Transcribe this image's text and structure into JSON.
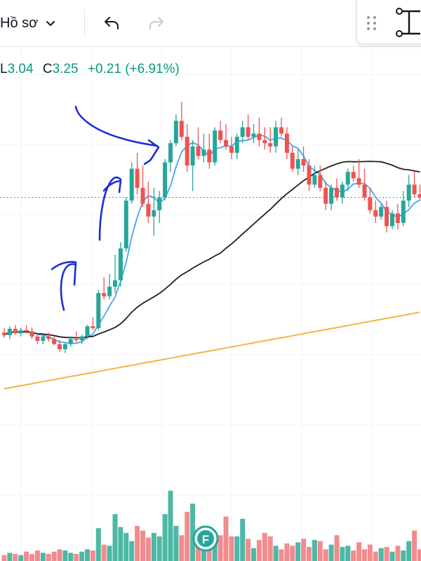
{
  "toolbar": {
    "profile_label": "Hồ sơ",
    "icons": [
      "chevron-down-icon",
      "undo-icon",
      "redo-icon",
      "drag-handle-icon",
      "measure-tool-icon"
    ]
  },
  "legend": {
    "low_label": "L",
    "low_value": "3.04",
    "close_label": "C",
    "close_value": "3.25",
    "change": "+0.21 (+6.91%)"
  },
  "colors": {
    "up": "#26a69a",
    "down": "#ef5350",
    "vol_up": "#4cb8a6",
    "vol_down": "#f28b8e",
    "ma_short": "#42a5f5",
    "ma_long": "#1f1f1f",
    "ma_longest": "#f5b342",
    "annotation": "#1b2fd6",
    "price_line": "#26a69a"
  },
  "chart_data": {
    "type": "candlestick",
    "price_unit": "relative",
    "ohlc": [
      [
        0.48,
        0.55,
        0.4,
        0.44
      ],
      [
        0.44,
        0.58,
        0.38,
        0.54
      ],
      [
        0.54,
        0.6,
        0.45,
        0.47
      ],
      [
        0.47,
        0.56,
        0.42,
        0.52
      ],
      [
        0.52,
        0.6,
        0.46,
        0.5
      ],
      [
        0.5,
        0.56,
        0.38,
        0.42
      ],
      [
        0.42,
        0.47,
        0.3,
        0.35
      ],
      [
        0.35,
        0.45,
        0.3,
        0.42
      ],
      [
        0.42,
        0.48,
        0.34,
        0.38
      ],
      [
        0.38,
        0.43,
        0.28,
        0.3
      ],
      [
        0.3,
        0.36,
        0.18,
        0.22
      ],
      [
        0.22,
        0.32,
        0.16,
        0.3
      ],
      [
        0.3,
        0.42,
        0.26,
        0.38
      ],
      [
        0.38,
        0.5,
        0.33,
        0.36
      ],
      [
        0.36,
        0.45,
        0.3,
        0.42
      ],
      [
        0.42,
        0.6,
        0.38,
        0.58
      ],
      [
        0.58,
        0.72,
        0.52,
        0.55
      ],
      [
        0.55,
        1.15,
        0.52,
        1.1
      ],
      [
        1.1,
        1.35,
        1.0,
        1.05
      ],
      [
        1.05,
        1.4,
        1.0,
        1.2
      ],
      [
        1.2,
        1.7,
        1.1,
        1.3
      ],
      [
        1.3,
        1.9,
        1.2,
        1.8
      ],
      [
        1.8,
        2.6,
        1.75,
        2.55
      ],
      [
        2.55,
        3.15,
        2.5,
        3.05
      ],
      [
        3.05,
        3.3,
        2.65,
        2.75
      ],
      [
        2.75,
        3.1,
        2.45,
        2.5
      ],
      [
        2.5,
        2.85,
        2.2,
        2.3
      ],
      [
        2.3,
        2.75,
        2.0,
        2.4
      ],
      [
        2.4,
        2.7,
        2.2,
        2.6
      ],
      [
        2.6,
        3.2,
        2.55,
        3.15
      ],
      [
        3.15,
        3.5,
        3.0,
        3.45
      ],
      [
        3.45,
        3.9,
        3.4,
        3.8
      ],
      [
        3.8,
        4.1,
        3.5,
        3.55
      ],
      [
        3.55,
        3.75,
        3.0,
        3.1
      ],
      [
        3.1,
        3.5,
        2.7,
        3.4
      ],
      [
        3.4,
        3.7,
        3.2,
        3.25
      ],
      [
        3.25,
        3.6,
        3.15,
        3.35
      ],
      [
        3.35,
        3.6,
        3.05,
        3.15
      ],
      [
        3.15,
        3.7,
        3.1,
        3.65
      ],
      [
        3.65,
        3.8,
        3.45,
        3.5
      ],
      [
        3.5,
        3.75,
        3.35,
        3.4
      ],
      [
        3.4,
        3.55,
        3.2,
        3.3
      ],
      [
        3.3,
        3.6,
        3.2,
        3.55
      ],
      [
        3.55,
        3.8,
        3.45,
        3.7
      ],
      [
        3.7,
        3.9,
        3.5,
        3.55
      ],
      [
        3.55,
        3.75,
        3.45,
        3.6
      ],
      [
        3.6,
        3.85,
        3.4,
        3.5
      ],
      [
        3.5,
        3.7,
        3.35,
        3.45
      ],
      [
        3.45,
        3.7,
        3.3,
        3.4
      ],
      [
        3.4,
        3.8,
        3.3,
        3.7
      ],
      [
        3.7,
        3.85,
        3.55,
        3.6
      ],
      [
        3.6,
        3.7,
        3.2,
        3.3
      ],
      [
        3.3,
        3.4,
        3.0,
        3.05
      ],
      [
        3.05,
        3.35,
        2.95,
        3.2
      ],
      [
        3.2,
        3.4,
        3.0,
        3.1
      ],
      [
        3.1,
        3.2,
        2.7,
        2.8
      ],
      [
        2.8,
        3.1,
        2.75,
        2.95
      ],
      [
        2.95,
        3.1,
        2.7,
        2.75
      ],
      [
        2.75,
        2.85,
        2.4,
        2.5
      ],
      [
        2.5,
        2.8,
        2.4,
        2.75
      ],
      [
        2.75,
        2.9,
        2.55,
        2.6
      ],
      [
        2.6,
        2.85,
        2.5,
        2.8
      ],
      [
        2.8,
        3.05,
        2.7,
        3.0
      ],
      [
        3.0,
        3.1,
        2.85,
        2.9
      ],
      [
        2.9,
        3.2,
        2.75,
        2.8
      ],
      [
        2.8,
        3.05,
        2.55,
        2.6
      ],
      [
        2.6,
        2.75,
        2.35,
        2.4
      ],
      [
        2.4,
        2.55,
        2.2,
        2.3
      ],
      [
        2.3,
        2.5,
        2.25,
        2.45
      ],
      [
        2.45,
        2.55,
        2.05,
        2.15
      ],
      [
        2.15,
        2.4,
        2.1,
        2.35
      ],
      [
        2.35,
        2.5,
        2.1,
        2.2
      ],
      [
        2.2,
        2.7,
        2.15,
        2.55
      ],
      [
        2.55,
        2.95,
        2.45,
        2.8
      ],
      [
        2.8,
        3.0,
        2.6,
        2.65
      ],
      [
        2.65,
        2.8,
        2.55,
        2.6
      ]
    ],
    "volume": [
      5,
      7,
      6,
      5,
      8,
      6,
      9,
      7,
      6,
      8,
      10,
      9,
      7,
      6,
      8,
      10,
      9,
      28,
      14,
      13,
      40,
      29,
      24,
      17,
      30,
      26,
      20,
      24,
      21,
      40,
      60,
      30,
      22,
      42,
      49,
      27,
      30,
      17,
      21,
      22,
      38,
      21,
      21,
      36,
      19,
      11,
      18,
      24,
      21,
      13,
      10,
      15,
      13,
      16,
      19,
      12,
      18,
      17,
      10,
      14,
      22,
      12,
      13,
      9,
      16,
      10,
      14,
      8,
      11,
      12,
      8,
      13,
      9,
      17,
      26,
      10
    ]
  }
}
